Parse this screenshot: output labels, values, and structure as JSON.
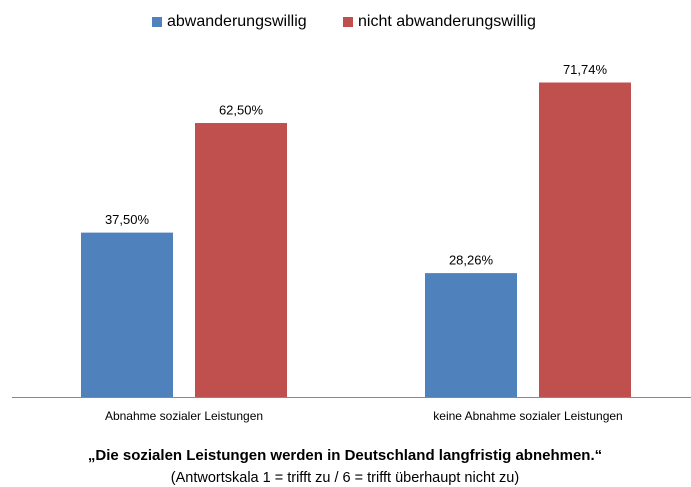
{
  "chart_data": {
    "type": "bar",
    "title": "„Die sozialen Leistungen werden in Deutschland langfristig abnehmen.“",
    "subtitle": "(Antwortskala 1 = trifft zu / 6 = trifft überhaupt nicht zu)",
    "categories": [
      "Abnahme sozialer Leistungen",
      "keine Abnahme sozialer Leistungen"
    ],
    "series": [
      {
        "name": "abwanderungswillig",
        "color": "#4f81bd",
        "values": [
          37.5,
          28.26
        ],
        "value_labels": [
          "37,50%",
          "28,26%"
        ]
      },
      {
        "name": "nicht abwanderungswillig",
        "color": "#c0504d",
        "values": [
          62.5,
          71.74
        ],
        "value_labels": [
          "62,50%",
          "71,74%"
        ]
      }
    ],
    "ylim": [
      0,
      80
    ]
  }
}
